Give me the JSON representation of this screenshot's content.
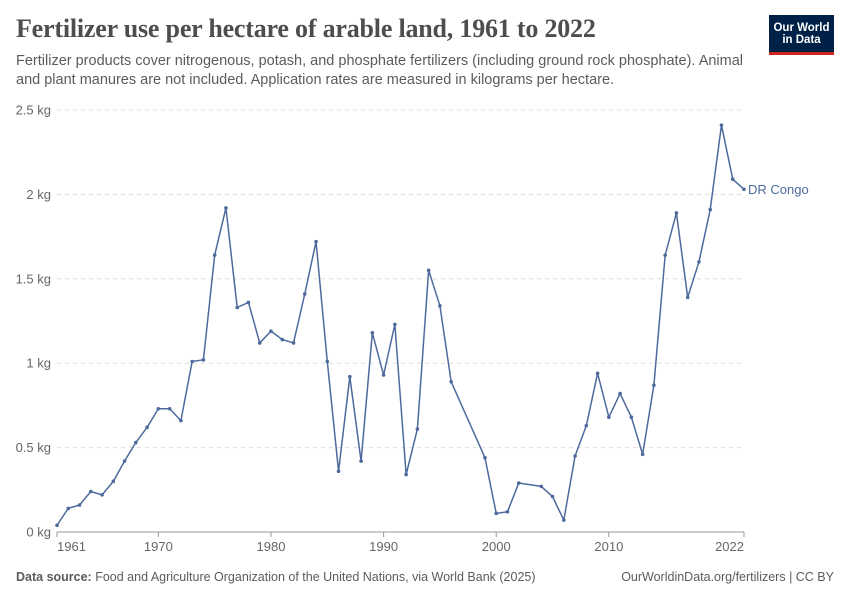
{
  "header": {
    "title": "Fertilizer use per hectare of arable land, 1961 to 2022",
    "subtitle": "Fertilizer products cover nitrogenous, potash, and phosphate fertilizers (including ground rock phosphate). Animal and plant manures are not included. Application rates are measured in kilograms per hectare."
  },
  "logo": {
    "line1": "Our World",
    "line2": "in Data",
    "bg_color": "#002147",
    "accent_color": "#ce261e"
  },
  "footer": {
    "source_label": "Data source:",
    "source_text": "Food and Agriculture Organization of the United Nations, via World Bank (2025)",
    "right_text": "OurWorldinData.org/fertilizers | CC BY"
  },
  "chart_data": {
    "type": "line",
    "title": "Fertilizer use per hectare of arable land, 1961 to 2022",
    "xlabel": "",
    "ylabel": "",
    "xlim": [
      1961,
      2022
    ],
    "ylim": [
      0,
      2.5
    ],
    "x_ticks": [
      {
        "value": 1961,
        "label": "1961"
      },
      {
        "value": 1970,
        "label": "1970"
      },
      {
        "value": 1980,
        "label": "1980"
      },
      {
        "value": 1990,
        "label": "1990"
      },
      {
        "value": 2000,
        "label": "2000"
      },
      {
        "value": 2010,
        "label": "2010"
      },
      {
        "value": 2022,
        "label": "2022"
      }
    ],
    "y_ticks": [
      {
        "value": 0,
        "label": "0 kg"
      },
      {
        "value": 0.5,
        "label": "0.5 kg"
      },
      {
        "value": 1,
        "label": "1 kg"
      },
      {
        "value": 1.5,
        "label": "1.5 kg"
      },
      {
        "value": 2,
        "label": "2 kg"
      },
      {
        "value": 2.5,
        "label": "2.5 kg"
      }
    ],
    "grid": "horizontal",
    "line_color": "#4c6a9c",
    "series": [
      {
        "name": "DR Congo",
        "points": [
          [
            1961,
            0.04
          ],
          [
            1962,
            0.14
          ],
          [
            1963,
            0.16
          ],
          [
            1964,
            0.24
          ],
          [
            1965,
            0.22
          ],
          [
            1966,
            0.3
          ],
          [
            1967,
            0.42
          ],
          [
            1968,
            0.53
          ],
          [
            1969,
            0.62
          ],
          [
            1970,
            0.73
          ],
          [
            1971,
            0.73
          ],
          [
            1972,
            0.66
          ],
          [
            1973,
            1.01
          ],
          [
            1974,
            1.02
          ],
          [
            1975,
            1.64
          ],
          [
            1976,
            1.92
          ],
          [
            1977,
            1.33
          ],
          [
            1978,
            1.36
          ],
          [
            1979,
            1.12
          ],
          [
            1980,
            1.19
          ],
          [
            1981,
            1.14
          ],
          [
            1982,
            1.12
          ],
          [
            1983,
            1.41
          ],
          [
            1984,
            1.72
          ],
          [
            1985,
            1.01
          ],
          [
            1986,
            0.36
          ],
          [
            1987,
            0.92
          ],
          [
            1988,
            0.42
          ],
          [
            1989,
            1.18
          ],
          [
            1990,
            0.93
          ],
          [
            1991,
            1.23
          ],
          [
            1992,
            0.34
          ],
          [
            1993,
            0.61
          ],
          [
            1994,
            1.55
          ],
          [
            1995,
            1.34
          ],
          [
            1996,
            0.89
          ],
          [
            1999,
            0.44
          ],
          [
            2000,
            0.11
          ],
          [
            2001,
            0.12
          ],
          [
            2002,
            0.29
          ],
          [
            2004,
            0.27
          ],
          [
            2005,
            0.21
          ],
          [
            2006,
            0.07
          ],
          [
            2007,
            0.45
          ],
          [
            2008,
            0.63
          ],
          [
            2009,
            0.94
          ],
          [
            2010,
            0.68
          ],
          [
            2011,
            0.82
          ],
          [
            2012,
            0.68
          ],
          [
            2013,
            0.46
          ],
          [
            2014,
            0.87
          ],
          [
            2015,
            1.64
          ],
          [
            2016,
            1.89
          ],
          [
            2017,
            1.39
          ],
          [
            2018,
            1.6
          ],
          [
            2019,
            1.91
          ],
          [
            2020,
            2.41
          ],
          [
            2021,
            2.09
          ],
          [
            2022,
            2.03
          ]
        ]
      }
    ]
  }
}
